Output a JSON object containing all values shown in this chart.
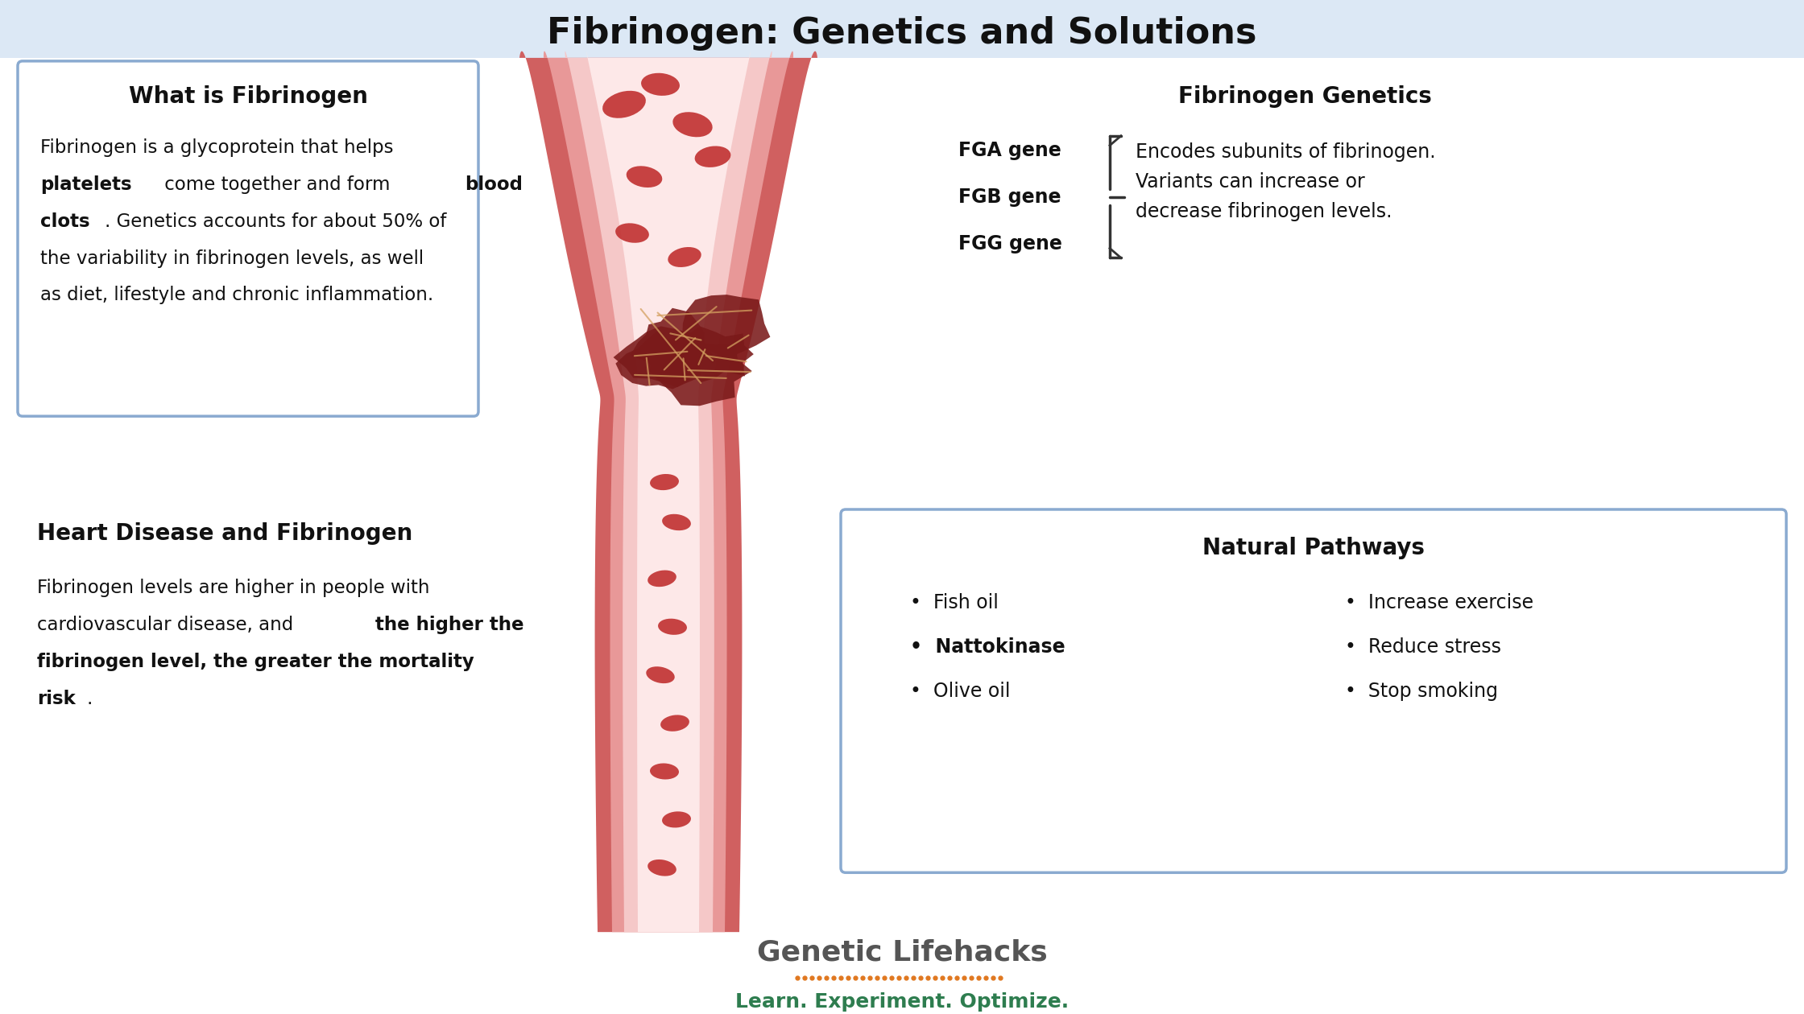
{
  "title": "Fibrinogen: Genetics and Solutions",
  "title_fontsize": 32,
  "bg_top_color": "#dce8f5",
  "bg_bottom_color": "#ffffff",
  "box_border_color": "#8aaad0",
  "box1_title": "What is Fibrinogen",
  "box2_title": "Fibrinogen Genetics",
  "box2_genes": [
    "FGA gene",
    "FGB gene",
    "FGG gene"
  ],
  "box2_desc": "Encodes subunits of fibrinogen.\nVariants can increase or\ndecrease fibrinogen levels.",
  "box3_title": "Heart Disease and Fibrinogen",
  "box4_title": "Natural Pathways",
  "box4_col1": [
    "Fish oil",
    "Nattokinase",
    "Olive oil"
  ],
  "box4_col1_bold": [
    false,
    true,
    false
  ],
  "box4_col2": [
    "Increase exercise",
    "Reduce stress",
    "Stop smoking"
  ],
  "box4_col2_bold": [
    false,
    false,
    false
  ],
  "footer_name": "Genetic Lifehacks",
  "footer_tagline": "Learn. Experiment. Optimize.",
  "footer_name_color": "#555555",
  "footer_tagline_color": "#2e7d4f",
  "footer_dots_color": "#e07820",
  "vessel_outer_color": "#d06060",
  "vessel_mid_color": "#e89898",
  "vessel_inner_color": "#f5c8c8",
  "vessel_lumen_color": "#fde8e8",
  "rbc_color": "#c03030",
  "clot_color": "#7a1a1a",
  "clot_fiber_color": "#d4a060"
}
